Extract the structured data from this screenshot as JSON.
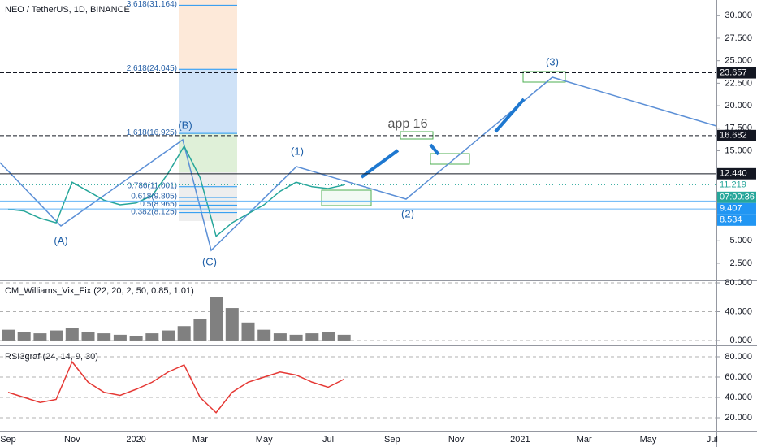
{
  "header": "NEO / TetherUS, 1D, BINANCE",
  "chart_data": [
    {
      "type": "line",
      "color": "#26a69a",
      "categories": [
        "Sep",
        null,
        null,
        null,
        "Nov",
        null,
        null,
        null,
        "2020",
        null,
        null,
        null,
        "Mar",
        null,
        null,
        null,
        "May",
        null,
        null,
        null,
        "Jul",
        null,
        null,
        null,
        "Sep",
        null,
        null,
        null,
        "Nov",
        null,
        null,
        null,
        "2021",
        null,
        null,
        null,
        "Mar",
        null,
        null,
        null,
        "May",
        null,
        null,
        null,
        "Jul"
      ],
      "values": [
        8.5,
        8.3,
        7.5,
        7.0,
        11.5,
        10.5,
        9.5,
        9.0,
        9.2,
        10.0,
        12.5,
        15.5,
        12.0,
        5.5,
        7.0,
        8.0,
        9.0,
        10.5,
        11.5,
        11.0,
        10.8,
        11.2,
        null,
        null,
        null,
        null,
        null,
        null,
        null,
        null,
        null,
        null,
        null,
        null,
        null,
        null,
        null,
        null,
        null,
        null,
        null,
        null,
        null,
        null,
        null
      ],
      "ylim": [
        0.6,
        31.74
      ],
      "yticks": [
        {
          "value": 2.5,
          "label": "2.500"
        },
        {
          "value": 5,
          "label": "5.000"
        },
        {
          "value": 15,
          "label": "15.000"
        },
        {
          "value": 17.5,
          "label": "17.500"
        },
        {
          "value": 20,
          "label": "20.000"
        },
        {
          "value": 22.5,
          "label": "22.500"
        },
        {
          "value": 25,
          "label": "25.000"
        },
        {
          "value": 27.5,
          "label": "27.500"
        },
        {
          "value": 30,
          "label": "30.000"
        }
      ],
      "price_labels": [
        {
          "value": 23.657,
          "label": "23.657",
          "color": "#131722"
        },
        {
          "value": 16.682,
          "label": "16.682",
          "color": "#131722"
        },
        {
          "value": 12.44,
          "label": "12.440",
          "color": "#131722"
        },
        {
          "value": 11.219,
          "label": "11.219",
          "color": "#ffffff"
        },
        {
          "value": 9.407,
          "label": "9.407",
          "color": "#2196f3"
        },
        {
          "value": 8.534,
          "label": "8.534",
          "color": "#2196f3"
        }
      ],
      "countdown": "07:00:36",
      "fib_levels": [
        {
          "value": 31.164,
          "label": "3.618(31.164)"
        },
        {
          "value": 24.045,
          "label": "2.618(24.045)"
        },
        {
          "value": 16.925,
          "label": "1.618(16.925)"
        },
        {
          "value": 11.001,
          "label": "0.786(11.001)"
        },
        {
          "value": 9.805,
          "label": "0.618(9.805)"
        },
        {
          "value": 8.965,
          "label": "0.5(8.965)"
        },
        {
          "value": 8.125,
          "label": "0.382(8.125)"
        }
      ],
      "waves": [
        "(A)",
        "(B)",
        "(C)",
        "(1)",
        "(2)",
        "(3)"
      ],
      "note": "app 16"
    },
    {
      "type": "bar",
      "title": "CM_Williams_Vix_Fix (22, 20, 2, 50, 0.85, 1.01)",
      "color": "#808080",
      "values": [
        15,
        12,
        10,
        14,
        18,
        12,
        10,
        8,
        6,
        10,
        14,
        20,
        30,
        60,
        45,
        25,
        15,
        10,
        8,
        10,
        12,
        8,
        null,
        null,
        null,
        null,
        null,
        null,
        null,
        null,
        null,
        null,
        null,
        null,
        null,
        null,
        null,
        null,
        null,
        null,
        null,
        null,
        null,
        null,
        null
      ],
      "ylim": [
        -6.8,
        83.4
      ],
      "yticks": [
        {
          "value": 0,
          "label": "0.000"
        },
        {
          "value": 40,
          "label": "40.000"
        },
        {
          "value": 80,
          "label": "80.000"
        }
      ]
    },
    {
      "type": "line",
      "title": "RSI3graf (24, 14, 9, 30)",
      "color": "#e53935",
      "values": [
        45,
        40,
        35,
        38,
        75,
        55,
        45,
        42,
        48,
        55,
        65,
        72,
        40,
        25,
        45,
        55,
        60,
        65,
        62,
        55,
        50,
        58,
        null,
        null,
        null,
        null,
        null,
        null,
        null,
        null,
        null,
        null,
        null,
        null,
        null,
        null,
        null,
        null,
        null,
        null,
        null,
        null,
        null,
        null,
        null
      ],
      "ylim": [
        7.2,
        91.2
      ],
      "yticks": [
        {
          "value": 20,
          "label": "20.000"
        },
        {
          "value": 40,
          "label": "40.000"
        },
        {
          "value": 60,
          "label": "60.000"
        },
        {
          "value": 80,
          "label": "80.000"
        }
      ]
    }
  ]
}
